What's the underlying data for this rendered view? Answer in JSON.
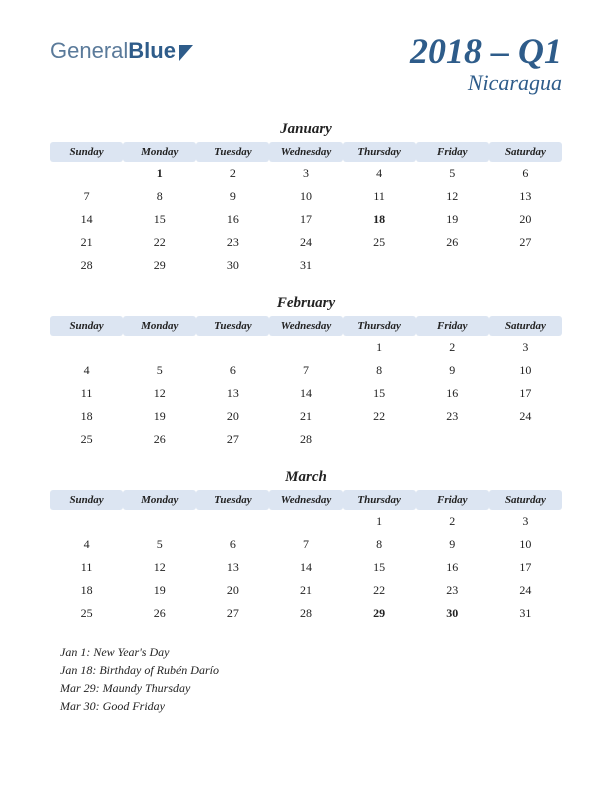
{
  "logo": {
    "part1": "General",
    "part2": "Blue"
  },
  "title": {
    "main": "2018 – Q1",
    "sub": "Nicaragua"
  },
  "weekdays": [
    "Sunday",
    "Monday",
    "Tuesday",
    "Wednesday",
    "Thursday",
    "Friday",
    "Saturday"
  ],
  "months": [
    {
      "name": "January",
      "weeks": [
        [
          "",
          "1",
          "2",
          "3",
          "4",
          "5",
          "6"
        ],
        [
          "7",
          "8",
          "9",
          "10",
          "11",
          "12",
          "13"
        ],
        [
          "14",
          "15",
          "16",
          "17",
          "18",
          "19",
          "20"
        ],
        [
          "21",
          "22",
          "23",
          "24",
          "25",
          "26",
          "27"
        ],
        [
          "28",
          "29",
          "30",
          "31",
          "",
          "",
          ""
        ]
      ],
      "holidays": [
        [
          0,
          1
        ],
        [
          2,
          4
        ]
      ]
    },
    {
      "name": "February",
      "weeks": [
        [
          "",
          "",
          "",
          "",
          "1",
          "2",
          "3"
        ],
        [
          "4",
          "5",
          "6",
          "7",
          "8",
          "9",
          "10"
        ],
        [
          "11",
          "12",
          "13",
          "14",
          "15",
          "16",
          "17"
        ],
        [
          "18",
          "19",
          "20",
          "21",
          "22",
          "23",
          "24"
        ],
        [
          "25",
          "26",
          "27",
          "28",
          "",
          "",
          ""
        ]
      ],
      "holidays": []
    },
    {
      "name": "March",
      "weeks": [
        [
          "",
          "",
          "",
          "",
          "1",
          "2",
          "3"
        ],
        [
          "4",
          "5",
          "6",
          "7",
          "8",
          "9",
          "10"
        ],
        [
          "11",
          "12",
          "13",
          "14",
          "15",
          "16",
          "17"
        ],
        [
          "18",
          "19",
          "20",
          "21",
          "22",
          "23",
          "24"
        ],
        [
          "25",
          "26",
          "27",
          "28",
          "29",
          "30",
          "31"
        ]
      ],
      "holidays": [
        [
          4,
          4
        ],
        [
          4,
          5
        ]
      ]
    }
  ],
  "holiday_list": [
    "Jan 1: New Year's Day",
    "Jan 18: Birthday of Rubén Darío",
    "Mar 29: Maundy Thursday",
    "Mar 30: Good Friday"
  ],
  "colors": {
    "header_bg": "#dce5f2",
    "brand": "#2e5c8a",
    "holiday": "#b82020",
    "text": "#222222"
  }
}
